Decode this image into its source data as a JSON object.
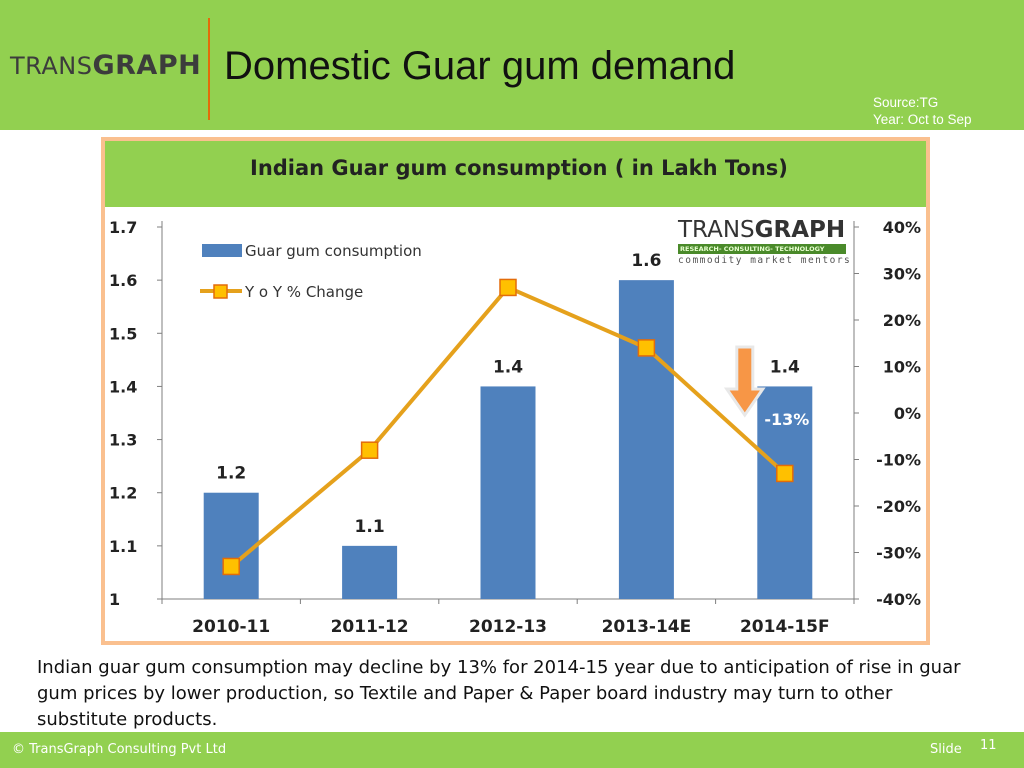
{
  "header": {
    "logo_light": "TRANS",
    "logo_bold": "GRAPH",
    "title": "Domestic Guar gum demand",
    "source_line1": "Source:TG",
    "source_line2": "Year: Oct to Sep"
  },
  "chart_logo": {
    "name_light": "TRANS",
    "name_bold": "GRAPH",
    "tagline": "RESEARCH- CONSULTING- TECHNOLOGY",
    "motto": "commodity market mentors"
  },
  "chart_data": {
    "type": "bar",
    "title": "Indian Guar gum consumption ( in Lakh Tons)",
    "categories": [
      "2010-11",
      "2011-12",
      "2012-13",
      "2013-14E",
      "2014-15F"
    ],
    "series": [
      {
        "name": "Guar gum consumption",
        "type": "bar",
        "axis": "left",
        "values": [
          1.2,
          1.1,
          1.4,
          1.6,
          1.4
        ],
        "labels": [
          "1.2",
          "1.1",
          "1.4",
          "1.6",
          "1.4"
        ],
        "color": "#4f81bd"
      },
      {
        "name": "Y o Y % Change",
        "type": "line",
        "axis": "right",
        "values": [
          -33,
          -8,
          27,
          14,
          -13
        ],
        "color": "#e5a11c",
        "marker_color": "#ffc000"
      }
    ],
    "y_left": {
      "min": 1.0,
      "max": 1.7,
      "ticks": [
        "1",
        "1.1",
        "1.2",
        "1.3",
        "1.4",
        "1.5",
        "1.6",
        "1.7"
      ]
    },
    "y_right": {
      "min": -40,
      "max": 40,
      "ticks": [
        "-40%",
        "-30%",
        "-20%",
        "-10%",
        "0%",
        "10%",
        "20%",
        "30%",
        "40%"
      ]
    },
    "annotation": {
      "text": "-13%",
      "category_index": 4,
      "arrow_color": "#f79646"
    },
    "legend_position": "top-left",
    "grid": false
  },
  "caption": "Indian guar gum consumption may decline by 13% for 2014-15 year due to anticipation of rise in guar gum prices by lower production, so Textile and Paper & Paper board industry may turn to other substitute products.",
  "footer": {
    "copyright": "© TransGraph Consulting Pvt Ltd",
    "slide_label": "Slide",
    "slide_number": "11"
  }
}
